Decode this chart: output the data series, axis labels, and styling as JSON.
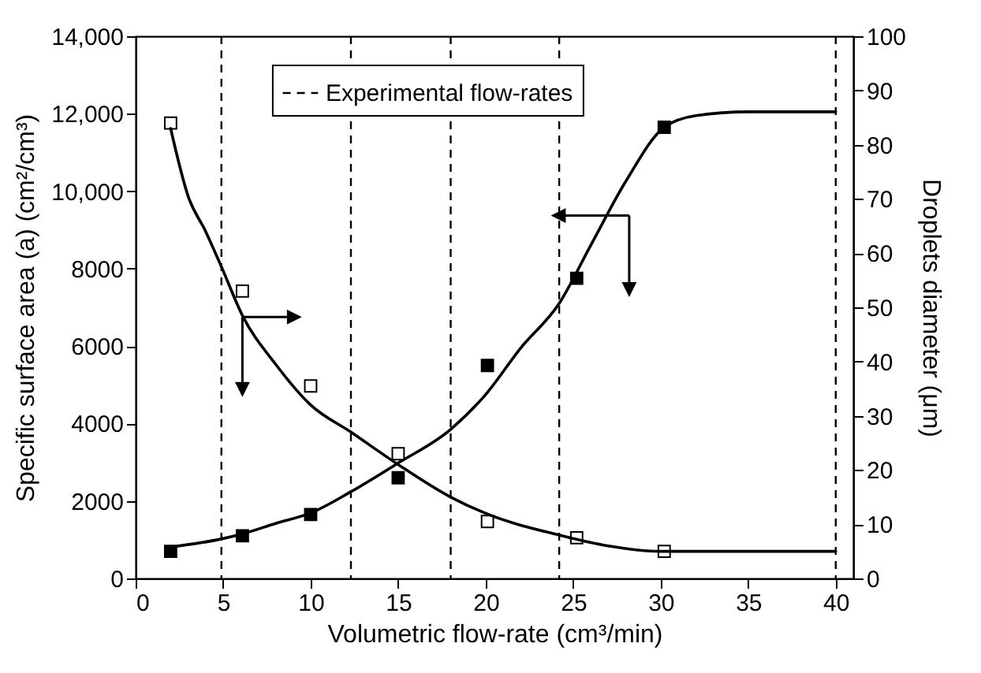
{
  "chart_data": {
    "type": "scatter",
    "xlabel": "Volumetric flow-rate (cm³/min)",
    "ylabel": "Specific surface area (a) (cm²/cm³)",
    "y2label": "Droplets diameter (μm)",
    "xlim": [
      0,
      41
    ],
    "xticks": [
      0,
      5,
      10,
      15,
      20,
      25,
      30,
      35,
      40
    ],
    "ylim": [
      0,
      14000
    ],
    "yticks": [
      0,
      2000,
      4000,
      6000,
      8000,
      {
        "value": 10000,
        "label": "10,000"
      },
      {
        "value": 12000,
        "label": "12,000"
      },
      {
        "value": 14000,
        "label": "14,000"
      }
    ],
    "y2lim": [
      0,
      100
    ],
    "y2ticks": [
      0,
      10,
      20,
      30,
      40,
      50,
      60,
      70,
      80,
      90,
      100
    ],
    "grid": false,
    "legend": "top",
    "series": [
      {
        "marker": "square",
        "color": "#000000",
        "x": [
          2,
          6.1,
          10,
          15,
          20.1,
          25.2,
          30.2
        ],
        "values": [
          700,
          1100,
          1650,
          2600,
          5500,
          7750,
          11650
        ]
      },
      {
        "marker": "square",
        "color": "#000000",
        "axis": "y2",
        "x": [
          2,
          6.1,
          10,
          15,
          20.1,
          25.2,
          30.2
        ],
        "values": [
          84,
          53,
          35.5,
          23,
          10.5,
          7.5,
          5
        ]
      },
      {
        "type": "line",
        "color": "#000000",
        "x": [
          2,
          4.9,
          6.1,
          8,
          10,
          12.3,
          15,
          18,
          20,
          22,
          24.2,
          26,
          28,
          30.2,
          32,
          35,
          40
        ],
        "values": [
          810,
          1020,
          1150,
          1420,
          1690,
          2240,
          2980,
          3850,
          4750,
          5950,
          7100,
          8600,
          10250,
          11650,
          11950,
          12050,
          12050
        ]
      },
      {
        "type": "line",
        "color": "#000000",
        "axis": "y2",
        "x": [
          2,
          3,
          4,
          4.9,
          6.1,
          8,
          10,
          12.3,
          15,
          18,
          20,
          24.2,
          27,
          30,
          33,
          40
        ],
        "values": [
          83,
          70.5,
          64,
          57.5,
          48.5,
          39.5,
          32,
          27,
          21,
          15,
          12,
          8,
          6,
          5,
          5,
          5
        ]
      }
    ],
    "ref_lines": [
      {
        "axis": "x",
        "value": 4.9,
        "label": "Experimental flow-rates",
        "line_style": "dashed"
      },
      {
        "axis": "x",
        "value": 12.3,
        "line_style": "dashed"
      },
      {
        "axis": "x",
        "value": 18,
        "line_style": "dashed"
      },
      {
        "axis": "x",
        "value": 24.2,
        "line_style": "dashed"
      },
      {
        "axis": "x",
        "value": 40,
        "line_style": "dashed"
      }
    ]
  }
}
